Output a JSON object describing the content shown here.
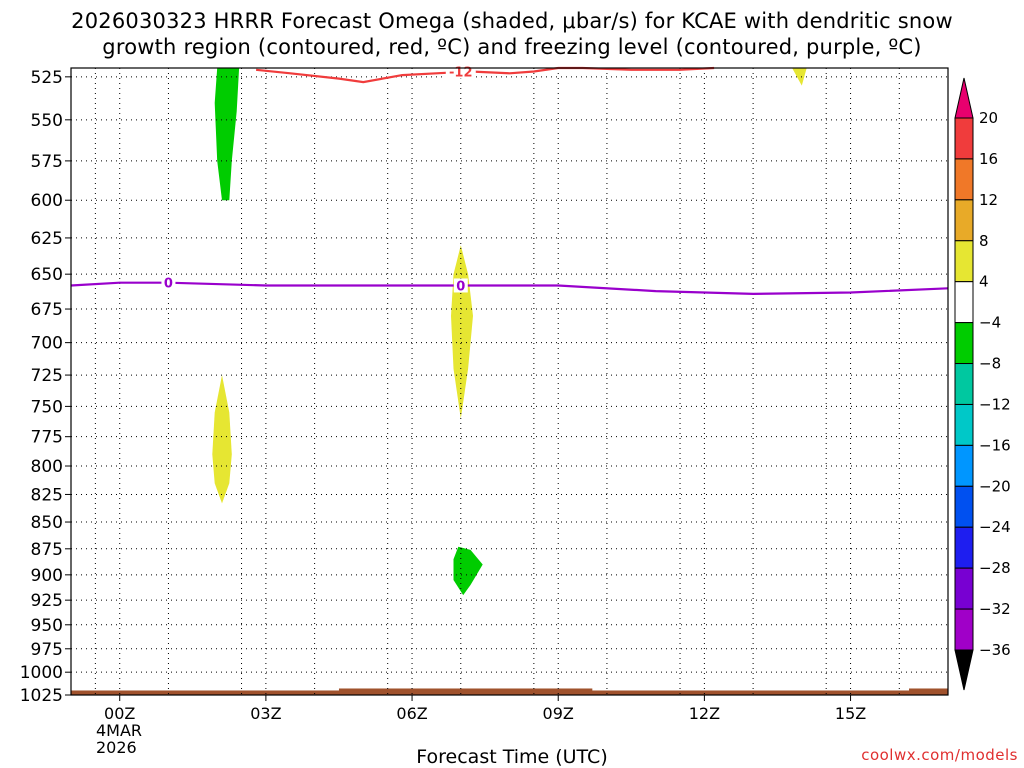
{
  "title_lines": [
    "2026030323 HRRR Forecast Omega (shaded, μbar/s) for KCAE with dendritic snow",
    "growth region (contoured, red, ºC) and freezing level (contoured, purple, ºC)"
  ],
  "credit": "coolwx.com/models",
  "date_label": [
    "4MAR",
    "2026"
  ],
  "chart_data": {
    "type": "contour",
    "title": "2026030323 HRRR Forecast Omega (shaded, μbar/s) for KCAE with dendritic snow growth region (contoured, red, ºC) and freezing level (contoured, purple, ºC)",
    "xlabel": "Forecast Time (UTC)",
    "ylabel": "",
    "x_unit": "forecast hour",
    "xlim": [
      -1,
      17
    ],
    "x_ticks": [
      {
        "hour": 0,
        "label": "00Z"
      },
      {
        "hour": 3,
        "label": "03Z"
      },
      {
        "hour": 6,
        "label": "06Z"
      },
      {
        "hour": 9,
        "label": "09Z"
      },
      {
        "hour": 12,
        "label": "12Z"
      },
      {
        "hour": 15,
        "label": "15Z"
      }
    ],
    "y_unit": "hPa",
    "y_scale": "log",
    "ylim": [
      1025,
      520
    ],
    "y_ticks": [
      525,
      550,
      575,
      600,
      625,
      650,
      675,
      700,
      725,
      750,
      775,
      800,
      825,
      850,
      875,
      900,
      925,
      950,
      975,
      1000,
      1025
    ],
    "grid": true,
    "colorbar": {
      "position": "right",
      "levels": [
        20,
        16,
        12,
        8,
        4,
        -4,
        -8,
        -12,
        -16,
        -20,
        -24,
        -28,
        -32,
        -36
      ],
      "colors": [
        "#e8006e",
        "#f03c3c",
        "#f07828",
        "#e8aa28",
        "#e6e632",
        "#ffffff",
        "#00cc00",
        "#00c8a0",
        "#00c8c8",
        "#0096ff",
        "#0050f0",
        "#1e1ef0",
        "#7800d2",
        "#a000c8",
        "#a0a0a0",
        "#000000"
      ]
    },
    "shaded_regions": [
      {
        "category": "-8 to -4",
        "color": "#00cc00",
        "points": [
          [
            2.0,
            520
          ],
          [
            2.45,
            520
          ],
          [
            2.4,
            545
          ],
          [
            2.3,
            575
          ],
          [
            2.25,
            600
          ],
          [
            2.1,
            600
          ],
          [
            2.0,
            575
          ],
          [
            1.95,
            540
          ]
        ]
      },
      {
        "category": "4 to 8",
        "color": "#e6e632",
        "points": [
          [
            2.1,
            725
          ],
          [
            2.25,
            755
          ],
          [
            2.3,
            790
          ],
          [
            2.25,
            815
          ],
          [
            2.1,
            833
          ],
          [
            1.95,
            815
          ],
          [
            1.9,
            790
          ],
          [
            1.95,
            755
          ]
        ]
      },
      {
        "category": "4 to 8",
        "color": "#e6e632",
        "points": [
          [
            7.0,
            630
          ],
          [
            7.15,
            650
          ],
          [
            7.25,
            680
          ],
          [
            7.15,
            720
          ],
          [
            7.0,
            760
          ],
          [
            6.85,
            720
          ],
          [
            6.8,
            680
          ],
          [
            6.85,
            650
          ]
        ]
      },
      {
        "category": "-8 to -4",
        "color": "#00cc00",
        "points": [
          [
            6.95,
            873
          ],
          [
            7.2,
            876
          ],
          [
            7.45,
            890
          ],
          [
            7.2,
            910
          ],
          [
            7.05,
            920
          ],
          [
            6.85,
            905
          ],
          [
            6.85,
            885
          ]
        ]
      },
      {
        "category": "4 to 8",
        "color": "#e6e632",
        "points": [
          [
            13.8,
            520
          ],
          [
            14.1,
            520
          ],
          [
            14.0,
            530
          ]
        ]
      }
    ],
    "series": [
      {
        "name": "-12",
        "color": "#f03c3c",
        "points": [
          [
            2.8,
            521
          ],
          [
            3.5,
            523
          ],
          [
            4.5,
            526
          ],
          [
            5.0,
            528
          ],
          [
            5.8,
            524
          ],
          [
            6.5,
            523
          ],
          [
            7.2,
            522
          ],
          [
            8.0,
            523
          ],
          [
            8.5,
            522
          ],
          [
            9.0,
            520
          ],
          [
            9.5,
            520
          ],
          [
            10.5,
            521
          ],
          [
            11.5,
            521
          ],
          [
            12.2,
            520
          ]
        ]
      },
      {
        "name": "0",
        "color": "#9900cc",
        "points": [
          [
            -1,
            658
          ],
          [
            0,
            656
          ],
          [
            1,
            656
          ],
          [
            3,
            658
          ],
          [
            5,
            658
          ],
          [
            7,
            658
          ],
          [
            9,
            658
          ],
          [
            11,
            662
          ],
          [
            13,
            664
          ],
          [
            15,
            663
          ],
          [
            17,
            660
          ]
        ]
      }
    ],
    "annotations": [
      {
        "text": "-12",
        "x": 7.0,
        "y": 522,
        "color": "#f03c3c"
      },
      {
        "text": "0",
        "x": 1.0,
        "y": 656,
        "color": "#9900cc"
      },
      {
        "text": "0",
        "x": 7.0,
        "y": 658,
        "color": "#9900cc"
      }
    ],
    "terrain": {
      "color": "#a0522d",
      "top_hpa": 1020
    }
  }
}
